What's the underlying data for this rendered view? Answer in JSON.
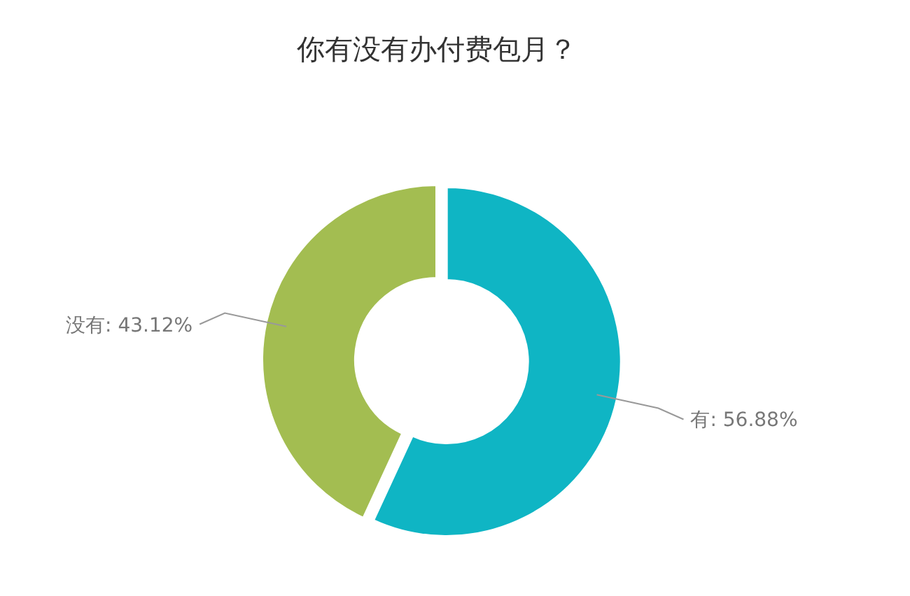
{
  "chart_data": {
    "type": "donut",
    "title": "你有没有办付费包月？",
    "categories": [
      "有",
      "没有"
    ],
    "values": [
      56.88,
      43.12
    ],
    "value_labels": [
      "56.88%",
      "43.12%"
    ],
    "colors": [
      "#0fb5c4",
      "#a3bd51"
    ]
  }
}
